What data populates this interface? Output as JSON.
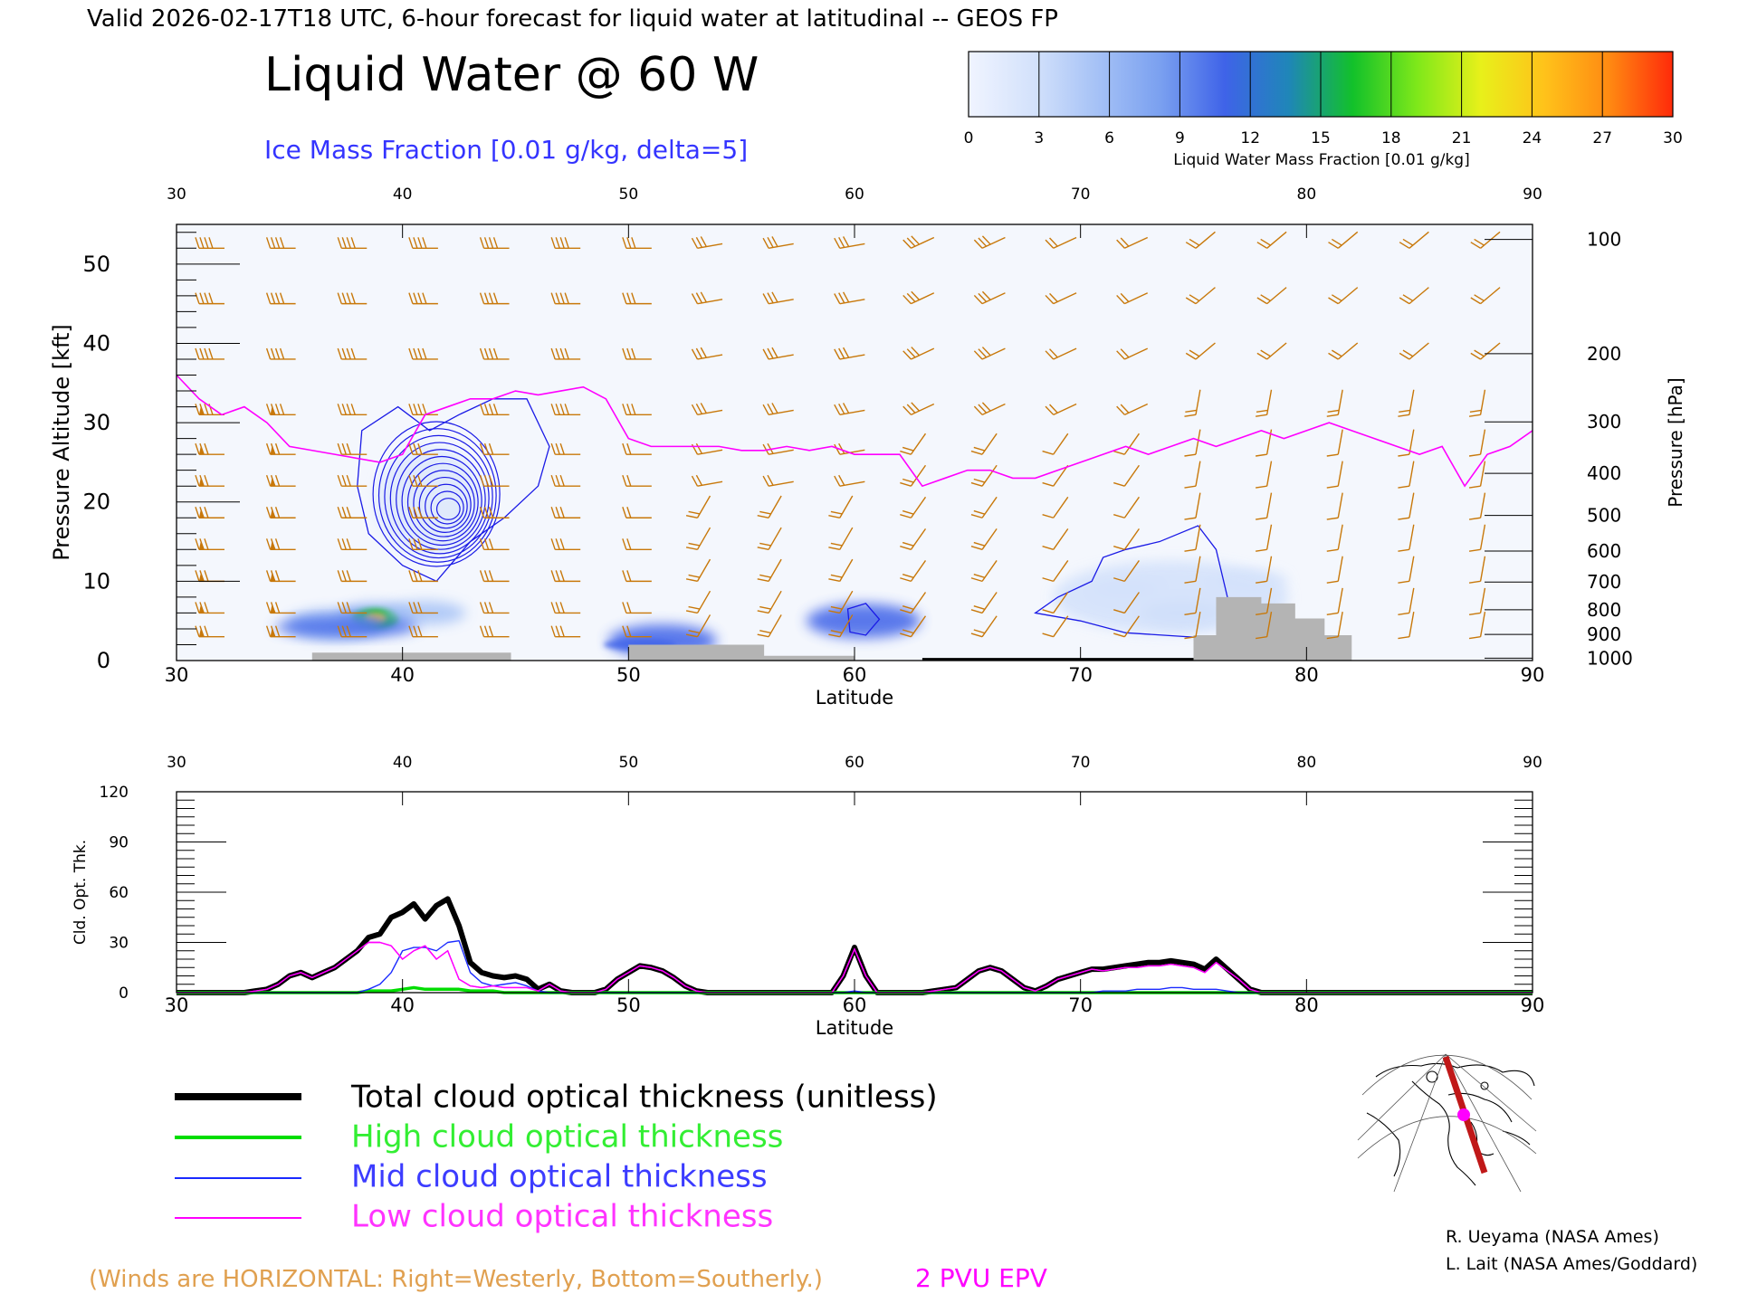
{
  "header": {
    "valid_line": "Valid 2026-02-17T18 UTC, 6-hour forecast for liquid water at latitudinal -- GEOS FP",
    "title": "Liquid Water @ 60 W",
    "ice_label": "Ice Mass Fraction [0.01 g/kg, delta=5]"
  },
  "colorbar": {
    "ticks": [
      "0",
      "3",
      "6",
      "9",
      "12",
      "15",
      "18",
      "21",
      "24",
      "27",
      "30"
    ],
    "label": "Liquid Water Mass Fraction [0.01 g/kg]",
    "colors": [
      "#f0f4ff",
      "#d4e2fb",
      "#a6c2f6",
      "#7aa0f0",
      "#3f63e8",
      "#1f86b8",
      "#12c12a",
      "#7ee81a",
      "#e8f01a",
      "#ffc21a",
      "#ff8a12",
      "#ff2a0a"
    ]
  },
  "colors": {
    "wind_barb": "#c8780a",
    "epv": "#ff00ff",
    "ice_contour": "#1a1ae6",
    "total_line": "#000000",
    "high_line": "#00dd00",
    "mid_line": "#1a2aff",
    "low_line": "#ff00ff",
    "terrain": "#b4b4b4"
  },
  "chart_data": [
    {
      "type": "heatmap",
      "title": "Liquid Water @ 60 W",
      "xlabel": "Latitude",
      "ylabel": "Pressure Altitude [kft]",
      "y2label": "Pressure [hPa]",
      "xlim": [
        30,
        90
      ],
      "ylim": [
        0,
        55
      ],
      "x_ticks": [
        "30",
        "40",
        "50",
        "60",
        "70",
        "80",
        "90"
      ],
      "top_ticks": [
        "30",
        "40",
        "50",
        "60",
        "70",
        "80",
        "90"
      ],
      "y_ticks": [
        "0",
        "10",
        "20",
        "30",
        "40",
        "50"
      ],
      "pressure_ticks": [
        {
          "label": "100",
          "kft": 53.1
        },
        {
          "label": "200",
          "kft": 38.7
        },
        {
          "label": "300",
          "kft": 30.1
        },
        {
          "label": "400",
          "kft": 23.6
        },
        {
          "label": "500",
          "kft": 18.3
        },
        {
          "label": "600",
          "kft": 13.8
        },
        {
          "label": "700",
          "kft": 9.9
        },
        {
          "label": "800",
          "kft": 6.4
        },
        {
          "label": "900",
          "kft": 3.3
        },
        {
          "label": "1000",
          "kft": 0.3
        }
      ],
      "liquid_water_blobs": [
        {
          "lat": 38.8,
          "kft": 5.3,
          "value": 24
        },
        {
          "lat": 37.0,
          "kft": 4.5,
          "value": 8
        },
        {
          "lat": 41.0,
          "kft": 6.0,
          "value": 5
        },
        {
          "lat": 51.5,
          "kft": 2.5,
          "value": 10
        },
        {
          "lat": 60.4,
          "kft": 5.0,
          "value": 11
        },
        {
          "lat": 74.5,
          "kft": 6.0,
          "value": 5
        },
        {
          "lat": 72.0,
          "kft": 9.0,
          "value": 3
        },
        {
          "lat": 77.5,
          "kft": 10.0,
          "value": 4
        }
      ],
      "epv_2pvu_kft": [
        [
          30,
          36
        ],
        [
          31,
          33
        ],
        [
          32,
          31
        ],
        [
          33,
          32
        ],
        [
          34,
          30
        ],
        [
          35,
          27
        ],
        [
          36,
          26.5
        ],
        [
          37,
          26
        ],
        [
          38,
          25.5
        ],
        [
          39,
          25
        ],
        [
          40,
          26
        ],
        [
          41,
          31
        ],
        [
          42,
          32
        ],
        [
          43,
          33
        ],
        [
          44,
          33
        ],
        [
          45,
          34
        ],
        [
          46,
          33.5
        ],
        [
          47,
          34
        ],
        [
          48,
          34.5
        ],
        [
          49,
          33
        ],
        [
          50,
          28
        ],
        [
          51,
          27
        ],
        [
          52,
          27
        ],
        [
          53,
          27
        ],
        [
          54,
          27
        ],
        [
          55,
          26.5
        ],
        [
          56,
          26.5
        ],
        [
          57,
          27
        ],
        [
          58,
          26.5
        ],
        [
          59,
          27
        ],
        [
          60,
          26
        ],
        [
          61,
          26
        ],
        [
          62,
          26
        ],
        [
          63,
          22
        ],
        [
          64,
          23
        ],
        [
          65,
          24
        ],
        [
          66,
          24
        ],
        [
          67,
          23
        ],
        [
          68,
          23
        ],
        [
          69,
          24
        ],
        [
          70,
          25
        ],
        [
          71,
          26
        ],
        [
          72,
          27
        ],
        [
          73,
          26
        ],
        [
          74,
          27
        ],
        [
          75,
          28
        ],
        [
          76,
          27
        ],
        [
          77,
          28
        ],
        [
          78,
          29
        ],
        [
          79,
          28
        ],
        [
          80,
          29
        ],
        [
          81,
          30
        ],
        [
          82,
          29
        ],
        [
          83,
          28
        ],
        [
          84,
          27
        ],
        [
          85,
          26
        ],
        [
          86,
          27
        ],
        [
          87,
          22
        ],
        [
          88,
          26
        ],
        [
          89,
          27
        ],
        [
          90,
          29
        ]
      ],
      "terrain_kft": [
        [
          36,
          1
        ],
        [
          44.8,
          1
        ],
        [
          44.8,
          0
        ],
        [
          50,
          0
        ],
        [
          50,
          2
        ],
        [
          56,
          2
        ],
        [
          56,
          0.6
        ],
        [
          60,
          0.6
        ],
        [
          60,
          0
        ],
        [
          75,
          0
        ],
        [
          75,
          3.2
        ],
        [
          76,
          3.2
        ],
        [
          76,
          8
        ],
        [
          78,
          8
        ],
        [
          78,
          7.2
        ],
        [
          79.5,
          7.2
        ],
        [
          79.5,
          5.3
        ],
        [
          80.8,
          5.3
        ],
        [
          80.8,
          3.2
        ],
        [
          82,
          3.2
        ],
        [
          82,
          0
        ]
      ]
    },
    {
      "type": "line",
      "xlabel": "Latitude",
      "ylabel": "Cld. Opt. Thk.",
      "xlim": [
        30,
        90
      ],
      "ylim": [
        0,
        120
      ],
      "x_ticks": [
        "30",
        "40",
        "50",
        "60",
        "70",
        "80",
        "90"
      ],
      "y_ticks": [
        "0",
        "30",
        "60",
        "90",
        "120"
      ],
      "x": [
        30,
        31,
        32,
        33,
        33.5,
        34,
        34.5,
        35,
        35.5,
        36,
        36.5,
        37,
        37.5,
        38,
        38.5,
        39,
        39.5,
        40,
        40.5,
        41,
        41.5,
        42,
        42.5,
        43,
        43.5,
        44,
        44.5,
        45,
        45.5,
        46,
        46.5,
        47,
        47.5,
        48,
        48.5,
        49,
        49.5,
        50,
        50.5,
        51,
        51.5,
        52,
        52.5,
        53,
        53.5,
        54,
        55,
        56,
        57,
        58,
        59,
        59.5,
        60,
        60.5,
        61,
        61.5,
        62,
        63,
        64,
        64.5,
        65,
        65.5,
        66,
        66.5,
        67,
        67.5,
        68,
        68.5,
        69,
        69.5,
        70,
        70.5,
        71,
        71.5,
        72,
        72.5,
        73,
        73.5,
        74,
        74.5,
        75,
        75.5,
        76,
        76.5,
        77,
        77.5,
        78,
        79,
        80,
        81,
        82,
        83,
        84,
        85,
        86,
        87,
        88,
        89,
        90
      ],
      "series": [
        {
          "name": "Total cloud optical thickness (unitless)",
          "values": [
            0,
            0,
            0,
            0,
            1,
            2,
            5,
            10,
            12,
            9,
            12,
            15,
            20,
            25,
            33,
            35,
            45,
            48,
            53,
            44,
            52,
            56,
            40,
            18,
            12,
            10,
            9,
            10,
            8,
            2,
            5,
            1,
            0,
            0,
            0,
            2,
            8,
            12,
            16,
            15,
            13,
            9,
            4,
            1,
            0,
            0,
            0,
            0,
            0,
            0,
            0,
            10,
            27,
            10,
            0,
            0,
            0,
            0,
            2,
            3,
            8,
            13,
            15,
            13,
            8,
            3,
            1,
            4,
            8,
            10,
            12,
            14,
            14,
            15,
            16,
            17,
            18,
            18,
            19,
            18,
            17,
            14,
            20,
            14,
            8,
            2,
            0,
            0,
            0,
            0,
            0,
            0,
            0,
            0,
            0,
            0,
            0,
            0,
            0
          ]
        },
        {
          "name": "High cloud optical thickness",
          "values": [
            0,
            0,
            0,
            0,
            0,
            0,
            0,
            0,
            0,
            0,
            0,
            0,
            0,
            0,
            1,
            1,
            1,
            2,
            3,
            2,
            2,
            2,
            2,
            1,
            1,
            1,
            0,
            0,
            0,
            0,
            0,
            0,
            0,
            0,
            0,
            0,
            0,
            0,
            0,
            0,
            0,
            0,
            0,
            0,
            0,
            0,
            0,
            0,
            0,
            0,
            0,
            0,
            0,
            0,
            0,
            0,
            0,
            0,
            0,
            0,
            0,
            0,
            0,
            0,
            0,
            0,
            0,
            0,
            0,
            0,
            0,
            0,
            0,
            0,
            0,
            0,
            0,
            0,
            0,
            0,
            0,
            0,
            0,
            0,
            0,
            0,
            0,
            0,
            0,
            0,
            0,
            0,
            0,
            0,
            0,
            0,
            0,
            0,
            0
          ]
        },
        {
          "name": "Mid cloud optical thickness",
          "values": [
            0,
            0,
            0,
            0,
            0,
            0,
            0,
            0,
            0,
            0,
            0,
            0,
            0,
            0,
            2,
            5,
            12,
            25,
            27,
            27,
            25,
            30,
            31,
            12,
            6,
            4,
            5,
            6,
            4,
            1,
            0,
            0,
            0,
            0,
            0,
            0,
            0,
            0,
            0,
            0,
            0,
            0,
            0,
            0,
            0,
            0,
            0,
            0,
            0,
            0,
            0,
            0,
            1,
            0,
            0,
            0,
            0,
            0,
            0,
            0,
            0,
            0,
            0,
            0,
            0,
            0,
            0,
            0,
            0,
            0,
            0,
            0,
            1,
            1,
            1,
            2,
            2,
            2,
            3,
            3,
            2,
            2,
            2,
            1,
            0,
            0,
            0,
            0,
            0,
            0,
            0,
            0,
            0,
            0,
            0,
            0,
            0,
            0,
            0
          ]
        },
        {
          "name": "Low cloud optical thickness",
          "values": [
            0,
            0,
            0,
            0,
            1,
            2,
            5,
            10,
            12,
            9,
            12,
            15,
            20,
            25,
            30,
            30,
            28,
            20,
            25,
            28,
            20,
            25,
            8,
            4,
            3,
            4,
            3,
            3,
            3,
            1,
            5,
            1,
            0,
            0,
            0,
            2,
            8,
            12,
            16,
            15,
            13,
            9,
            4,
            1,
            0,
            0,
            0,
            0,
            0,
            0,
            0,
            10,
            26,
            10,
            0,
            0,
            0,
            0,
            2,
            3,
            8,
            13,
            15,
            13,
            8,
            3,
            1,
            4,
            8,
            10,
            12,
            14,
            13,
            14,
            15,
            15,
            16,
            16,
            17,
            16,
            15,
            12,
            18,
            13,
            8,
            2,
            0,
            0,
            0,
            0,
            0,
            0,
            0,
            0,
            0,
            0,
            0,
            0,
            0
          ]
        }
      ]
    }
  ],
  "legend": {
    "total": "Total cloud optical thickness (unitless)",
    "high": "High cloud optical thickness",
    "mid": "Mid cloud optical thickness",
    "low": "Low cloud optical thickness"
  },
  "footer": {
    "winds_note": "(Winds are HORIZONTAL: Right=Westerly, Bottom=Southerly.)",
    "epv_label": "2 PVU EPV",
    "credit1": "R. Ueyama (NASA Ames)",
    "credit2": "L. Lait (NASA Ames/Goddard)"
  }
}
